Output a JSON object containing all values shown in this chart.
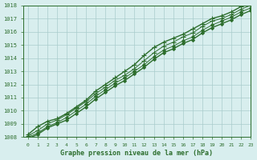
{
  "title": "Graphe pression niveau de la mer (hPa)",
  "bg_color": "#d8eeee",
  "grid_color": "#aacccc",
  "line_color": "#2d6e2d",
  "marker_color": "#2d6e2d",
  "x_values": [
    0,
    1,
    2,
    3,
    4,
    5,
    6,
    7,
    8,
    9,
    10,
    11,
    12,
    13,
    14,
    15,
    16,
    17,
    18,
    19,
    20,
    21,
    22,
    23
  ],
  "line1": [
    1008.2,
    1008.8,
    1009.2,
    1009.4,
    1009.8,
    1010.3,
    1010.8,
    1011.5,
    1012.0,
    1012.5,
    1013.0,
    1013.5,
    1014.2,
    1014.8,
    1015.2,
    1015.5,
    1015.8,
    1016.2,
    1016.6,
    1017.0,
    1017.2,
    1017.5,
    1017.9,
    1018.2
  ],
  "line2": [
    1008.1,
    1008.5,
    1009.0,
    1009.3,
    1009.7,
    1010.2,
    1010.7,
    1011.3,
    1011.8,
    1012.3,
    1012.7,
    1013.2,
    1013.8,
    1014.4,
    1014.9,
    1015.2,
    1015.6,
    1015.9,
    1016.4,
    1016.8,
    1017.0,
    1017.3,
    1017.7,
    1018.0
  ],
  "line3": [
    1008.0,
    1008.3,
    1008.8,
    1009.1,
    1009.5,
    1010.0,
    1010.5,
    1011.1,
    1011.6,
    1012.1,
    1012.5,
    1013.0,
    1013.5,
    1014.1,
    1014.6,
    1014.9,
    1015.3,
    1015.6,
    1016.1,
    1016.5,
    1016.8,
    1017.1,
    1017.5,
    1017.8
  ],
  "line4": [
    1007.9,
    1008.2,
    1008.7,
    1009.0,
    1009.3,
    1009.8,
    1010.3,
    1010.9,
    1011.4,
    1011.9,
    1012.3,
    1012.8,
    1013.3,
    1013.9,
    1014.4,
    1014.7,
    1015.1,
    1015.4,
    1015.9,
    1016.3,
    1016.6,
    1016.9,
    1017.3,
    1017.6
  ],
  "ylim": [
    1008,
    1018
  ],
  "yticks": [
    1008,
    1009,
    1010,
    1011,
    1012,
    1013,
    1014,
    1015,
    1016,
    1017,
    1018
  ],
  "xlim": [
    -0.5,
    23
  ],
  "xticks": [
    0,
    1,
    2,
    3,
    4,
    5,
    6,
    7,
    8,
    9,
    10,
    11,
    12,
    13,
    14,
    15,
    16,
    17,
    18,
    19,
    20,
    21,
    22,
    23
  ]
}
